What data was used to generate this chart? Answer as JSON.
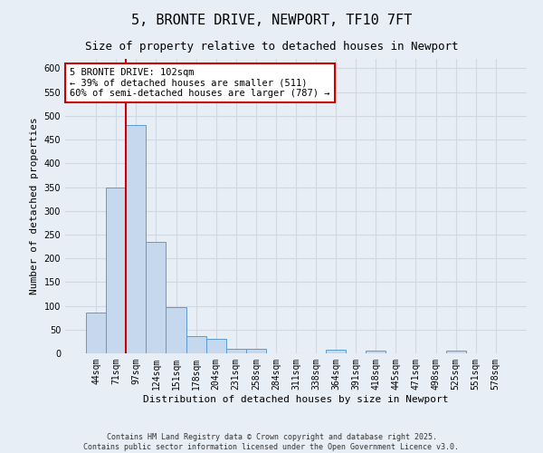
{
  "title": "5, BRONTE DRIVE, NEWPORT, TF10 7FT",
  "subtitle": "Size of property relative to detached houses in Newport",
  "xlabel": "Distribution of detached houses by size in Newport",
  "ylabel": "Number of detached properties",
  "categories": [
    "44sqm",
    "71sqm",
    "97sqm",
    "124sqm",
    "151sqm",
    "178sqm",
    "204sqm",
    "231sqm",
    "258sqm",
    "284sqm",
    "311sqm",
    "338sqm",
    "364sqm",
    "391sqm",
    "418sqm",
    "445sqm",
    "471sqm",
    "498sqm",
    "525sqm",
    "551sqm",
    "578sqm"
  ],
  "values": [
    85,
    350,
    480,
    235,
    97,
    37,
    30,
    10,
    10,
    0,
    0,
    0,
    7,
    0,
    5,
    0,
    0,
    0,
    5,
    0,
    0
  ],
  "bar_color": "#c5d8ed",
  "bar_edge_color": "#5b9bd5",
  "background_color": "#e8eef5",
  "grid_color": "#d0d8e4",
  "red_line_index": 2,
  "red_line_color": "#cc0000",
  "annotation_text": "5 BRONTE DRIVE: 102sqm\n← 39% of detached houses are smaller (511)\n60% of semi-detached houses are larger (787) →",
  "annotation_box_facecolor": "#ffffff",
  "annotation_box_edgecolor": "#cc0000",
  "ylim": [
    0,
    620
  ],
  "yticks": [
    0,
    50,
    100,
    150,
    200,
    250,
    300,
    350,
    400,
    450,
    500,
    550,
    600
  ],
  "footer_line1": "Contains HM Land Registry data © Crown copyright and database right 2025.",
  "footer_line2": "Contains public sector information licensed under the Open Government Licence v3.0.",
  "title_fontsize": 11,
  "subtitle_fontsize": 9,
  "axis_label_fontsize": 8,
  "tick_fontsize": 7,
  "annotation_fontsize": 7.5,
  "footer_fontsize": 6
}
